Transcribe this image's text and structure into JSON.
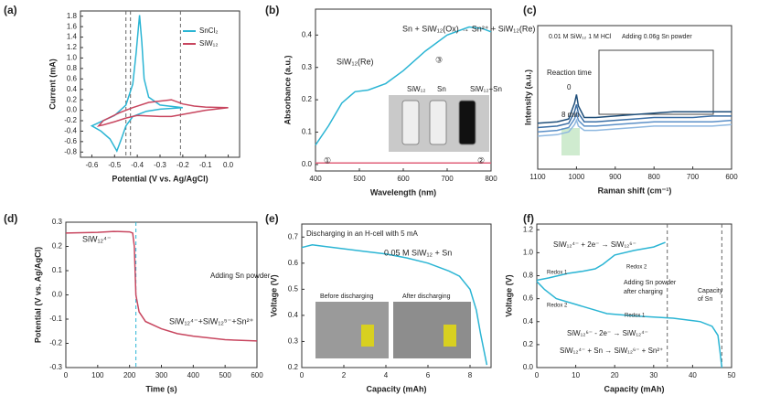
{
  "chart_data": [
    {
      "type": "line",
      "panel_label": "(a)",
      "x_label": "Potential (V vs. Ag/AgCl)",
      "y_label": "Current (mA)",
      "xlim": [
        -0.65,
        0.05
      ],
      "xticks": [
        -0.6,
        -0.5,
        -0.4,
        -0.3,
        -0.2,
        -0.1,
        {
          "value": 0,
          "label": "0.0"
        }
      ],
      "ylim": [
        -0.9,
        1.9
      ],
      "yticks": [
        -0.8,
        -0.6,
        -0.4,
        -0.2,
        {
          "value": 0,
          "label": "0.0"
        },
        0.2,
        0.4,
        0.6,
        0.8,
        {
          "value": 1,
          "label": "1.0"
        },
        1.2,
        1.4,
        1.6,
        1.8
      ],
      "vlines": [
        -0.45,
        -0.43,
        -0.21
      ],
      "series": [
        {
          "name": "SnCl₂",
          "color": "#2bb5d4",
          "x": [
            -0.2,
            -0.3,
            -0.36,
            -0.42,
            -0.45,
            -0.47,
            -0.49,
            -0.52,
            -0.56,
            -0.6,
            -0.56,
            -0.5,
            -0.45,
            -0.42,
            -0.405,
            -0.39,
            -0.38,
            -0.37,
            -0.35,
            -0.3,
            -0.2
          ],
          "values": [
            0.05,
            0.02,
            -0.02,
            -0.12,
            -0.3,
            -0.55,
            -0.78,
            -0.55,
            -0.4,
            -0.3,
            -0.22,
            -0.1,
            0.1,
            0.5,
            1.1,
            1.82,
            1.3,
            0.6,
            0.25,
            0.1,
            0.05
          ]
        },
        {
          "name": "SiW₁₂",
          "color": "#c8465f",
          "x": [
            0,
            -0.1,
            -0.2,
            -0.25,
            -0.3,
            -0.4,
            -0.45,
            -0.5,
            -0.55,
            -0.57,
            -0.55,
            -0.48,
            -0.42,
            -0.35,
            -0.25,
            -0.2,
            -0.15,
            -0.1,
            0
          ],
          "values": [
            0.05,
            0.0,
            -0.08,
            -0.12,
            -0.12,
            -0.1,
            -0.15,
            -0.22,
            -0.28,
            -0.3,
            -0.2,
            -0.05,
            0.05,
            0.15,
            0.2,
            0.12,
            0.08,
            0.06,
            0.05
          ]
        }
      ]
    },
    {
      "type": "line",
      "panel_label": "(b)",
      "x_label": "Wavelength (nm)",
      "y_label": "Absorbance (a.u.)",
      "xlim": [
        400,
        800
      ],
      "xticks": [
        400,
        500,
        600,
        700,
        800
      ],
      "ylim": [
        -0.02,
        0.48
      ],
      "yticks": [
        {
          "value": 0,
          "label": "0.0"
        },
        0.1,
        0.2,
        0.3,
        0.4
      ],
      "series": [
        {
          "color": "#2bb5d4",
          "x": [
            400,
            430,
            460,
            490,
            520,
            560,
            600,
            650,
            700,
            750,
            780,
            800
          ],
          "values": [
            0.06,
            0.12,
            0.19,
            0.225,
            0.23,
            0.25,
            0.29,
            0.35,
            0.4,
            0.425,
            0.42,
            0.41
          ]
        },
        {
          "color": "#e0607a",
          "x": [
            400,
            500,
            600,
            700,
            800
          ],
          "values": [
            0.005,
            0.005,
            0.005,
            0.005,
            0.005
          ]
        }
      ],
      "annotations": [
        "Sn + SiW₁₂(Ox) → Sn²⁺ + SiW₁₂(Re)",
        "SiW₁₂(Re)",
        "③",
        "①",
        "②",
        "SiW₁₂",
        "Sn",
        "SiW₁₂+Sn"
      ]
    },
    {
      "type": "line",
      "panel_label": "(c)",
      "x_label": "Raman shift (cm⁻¹)",
      "y_label": "Intensity (a.u.)",
      "xlim": [
        1100,
        600
      ],
      "xticks": [
        1100,
        1000,
        900,
        800,
        700,
        600
      ],
      "ylim": [
        0,
        10
      ],
      "series": [
        {
          "color": "#1f4e79",
          "x": [
            1100,
            1050,
            1020,
            1005,
            1000,
            995,
            980,
            950,
            900,
            850,
            800,
            750,
            700,
            650,
            600
          ],
          "values": [
            3.2,
            3.3,
            3.5,
            4.6,
            5.2,
            4.4,
            3.6,
            3.6,
            3.7,
            3.8,
            3.9,
            4.0,
            4.0,
            4.0,
            4.0
          ]
        },
        {
          "color": "#3a6ea5",
          "x": [
            1100,
            1050,
            1020,
            1005,
            1000,
            995,
            980,
            950,
            900,
            850,
            800,
            750,
            700,
            650,
            600
          ],
          "values": [
            2.9,
            3.0,
            3.2,
            4.0,
            4.5,
            3.9,
            3.3,
            3.3,
            3.4,
            3.5,
            3.6,
            3.6,
            3.6,
            3.7,
            3.7
          ]
        },
        {
          "color": "#5b8fc7",
          "x": [
            1100,
            1050,
            1020,
            1005,
            1000,
            995,
            980,
            950,
            900,
            850,
            800,
            750,
            700,
            650,
            600
          ],
          "values": [
            2.6,
            2.7,
            2.9,
            3.5,
            3.9,
            3.4,
            3.0,
            3.0,
            3.1,
            3.2,
            3.3,
            3.3,
            3.3,
            3.3,
            3.4
          ]
        },
        {
          "color": "#8fb8e0",
          "x": [
            1100,
            1050,
            1020,
            1005,
            1000,
            995,
            980,
            950,
            900,
            850,
            800,
            750,
            700,
            650,
            600
          ],
          "values": [
            2.3,
            2.4,
            2.6,
            3.1,
            3.4,
            3.0,
            2.7,
            2.7,
            2.8,
            2.9,
            3.0,
            3.0,
            3.0,
            3.0,
            3.1
          ]
        }
      ],
      "annotations": [
        "0.01 M SiW₁₂ 1 M HCl",
        "Adding 0.06g Sn powder",
        "Reaction time",
        "0",
        "8 min"
      ]
    },
    {
      "type": "line",
      "panel_label": "(d)",
      "x_label": "Time (s)",
      "y_label": "Potential (V vs. Ag/AgCl)",
      "xlim": [
        0,
        600
      ],
      "xticks": [
        0,
        100,
        200,
        300,
        400,
        500,
        600
      ],
      "ylim": [
        -0.3,
        0.3
      ],
      "yticks": [
        -0.3,
        -0.2,
        -0.1,
        {
          "value": 0,
          "label": "0.0"
        },
        0.1,
        0.2,
        0.3
      ],
      "vlines": [
        220
      ],
      "series": [
        {
          "color": "#c8465f",
          "x": [
            0,
            100,
            150,
            200,
            210,
            215,
            220,
            230,
            250,
            300,
            350,
            400,
            500,
            600
          ],
          "values": [
            0.255,
            0.258,
            0.262,
            0.26,
            0.255,
            0.2,
            0.0,
            -0.07,
            -0.11,
            -0.14,
            -0.16,
            -0.17,
            -0.185,
            -0.19
          ]
        }
      ],
      "annotations": [
        "SiW₁₂⁴⁻",
        "Adding Sn powder",
        "SiW₁₂⁴⁻+SiW₁₂⁵⁻+Sn²⁺"
      ]
    },
    {
      "type": "line",
      "panel_label": "(e)",
      "x_label": "Capacity (mAh)",
      "y_label": "Voltage (V)",
      "xlim": [
        0,
        9
      ],
      "xticks": [
        0,
        2,
        4,
        6,
        8
      ],
      "ylim": [
        0.2,
        0.75
      ],
      "yticks": [
        0.2,
        0.3,
        0.4,
        0.5,
        0.6,
        0.7
      ],
      "series": [
        {
          "color": "#2bb5d4",
          "x": [
            0,
            0.5,
            1,
            2,
            3,
            4,
            5,
            6,
            7,
            7.5,
            8,
            8.3,
            8.5,
            8.7,
            8.8
          ],
          "values": [
            0.66,
            0.67,
            0.665,
            0.655,
            0.645,
            0.635,
            0.62,
            0.6,
            0.57,
            0.55,
            0.5,
            0.42,
            0.33,
            0.25,
            0.21
          ]
        }
      ],
      "annotations": [
        "Discharging in an H-cell with 5 mA",
        "0.05 M SiW₁₂ + Sn",
        "Before discharging",
        "After discharging"
      ]
    },
    {
      "type": "line",
      "panel_label": "(f)",
      "x_label": "Capacity (mAh)",
      "y_label": "Voltage (V)",
      "xlim": [
        0,
        50
      ],
      "xticks": [
        0,
        10,
        20,
        30,
        40,
        50
      ],
      "ylim": [
        0,
        1.25
      ],
      "yticks": [
        {
          "value": 0,
          "label": "0.0"
        },
        0.2,
        0.4,
        0.6,
        0.8,
        {
          "value": 1,
          "label": "1.0"
        },
        1.2
      ],
      "vlines": [
        33.5,
        47.5
      ],
      "series": [
        {
          "color": "#2bb5d4",
          "x": [
            0,
            3,
            8,
            12,
            15,
            17,
            20,
            25,
            30,
            33
          ],
          "values": [
            0.76,
            0.78,
            0.82,
            0.84,
            0.86,
            0.9,
            0.98,
            1.02,
            1.05,
            1.09
          ]
        },
        {
          "color": "#2bb5d4",
          "x": [
            0,
            2,
            5,
            10,
            15,
            18,
            25,
            35,
            42,
            45,
            46.5,
            47,
            47.5
          ],
          "values": [
            0.75,
            0.68,
            0.6,
            0.55,
            0.5,
            0.47,
            0.45,
            0.43,
            0.4,
            0.36,
            0.28,
            0.15,
            0
          ]
        }
      ],
      "annotations": [
        "SiW₁₂⁴⁻ + 2e⁻ → SiW₁₂⁶⁻",
        "Redox 1",
        "Redox 2",
        "Redox 2",
        "Redox 1",
        "Adding Sn powder",
        "after charging",
        "Capacity",
        "of Sn",
        "SiW₁₂⁶⁻ - 2e⁻ → SiW₁₂⁴⁻",
        "SiW₁₂⁴⁻ + Sn → SiW₁₂⁶⁻ + Sn²⁺"
      ]
    }
  ]
}
